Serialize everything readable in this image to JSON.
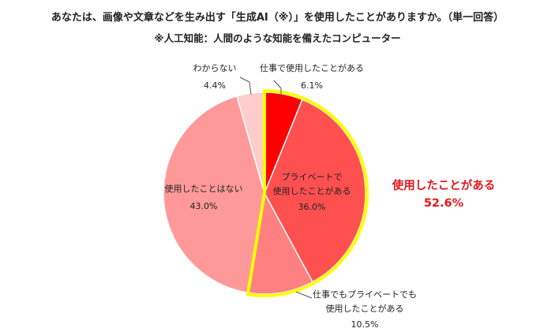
{
  "header": {
    "title": "あなたは、画像や文章などを生み出す「生成AI（※）」を使用したことがありますか。（単一回答）",
    "subtitle": "※人工知能：人間のような知能を備えたコンピューター"
  },
  "callout": {
    "label": "使用したことがある",
    "value": "52.6%",
    "color": "#e8141c"
  },
  "chart_data": {
    "type": "pie",
    "title": "あなたは、画像や文章などを生み出す「生成AI（※）」を使用したことがありますか。（単一回答）",
    "slices": [
      {
        "label": "仕事で使用したことがある",
        "lines": [
          "仕事で使用したことがある"
        ],
        "value": 6.1,
        "value_label": "6.1%",
        "color": "#ff0000"
      },
      {
        "label": "プライベートで使用したことがある",
        "lines": [
          "プライベートで",
          "使用したことがある"
        ],
        "value": 36.0,
        "value_label": "36.0%",
        "color": "#ff5050"
      },
      {
        "label": "仕事でもプライベートでも使用したことがある",
        "lines": [
          "仕事でもプライベートでも",
          "使用したことがある"
        ],
        "value": 10.5,
        "value_label": "10.5%",
        "color": "#ff8080"
      },
      {
        "label": "使用したことはない",
        "lines": [
          "使用したことはない"
        ],
        "value": 43.0,
        "value_label": "43.0%",
        "color": "#ff9999"
      },
      {
        "label": "わからない",
        "lines": [
          "わからない"
        ],
        "value": 4.4,
        "value_label": "4.4%",
        "color": "#ffcccc"
      }
    ],
    "highlight": {
      "slices": [
        0,
        1,
        2
      ],
      "outline_color": "#ffff00"
    },
    "start": "12 o'clock",
    "direction": "clockwise"
  }
}
